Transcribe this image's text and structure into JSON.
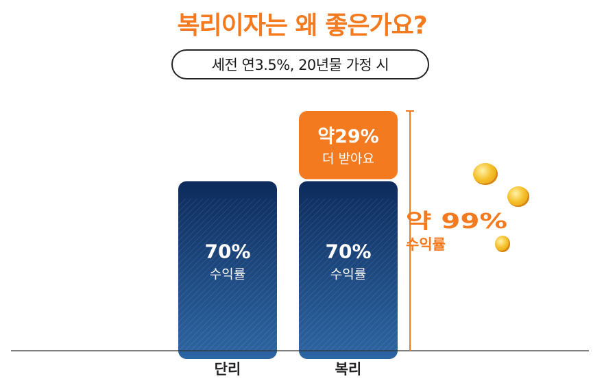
{
  "title": "복리이자는 왜 좋은가요?",
  "subtitle": "세전 연3.5%, 20년물 가정 시",
  "colors": {
    "accent": "#f47a1f",
    "bar_top": "#0d2b5c",
    "bar_bottom": "#2d66a3",
    "axis": "#333333",
    "coin": "#f5c02a"
  },
  "chart_data": {
    "type": "bar",
    "categories": [
      "단리",
      "복리"
    ],
    "series": [
      {
        "values": [
          70,
          70
        ],
        "labels": [
          "70%",
          "70%"
        ],
        "sublabels": [
          "수익률",
          "수익률"
        ]
      },
      {
        "values": [
          0,
          29
        ],
        "labels": [
          "",
          "약29%"
        ],
        "sublabels": [
          "",
          "더 받아요"
        ]
      }
    ],
    "ylim": [
      0,
      99
    ],
    "total_annotation": {
      "value": "약 99%",
      "label": "수익률"
    },
    "grid": false
  }
}
